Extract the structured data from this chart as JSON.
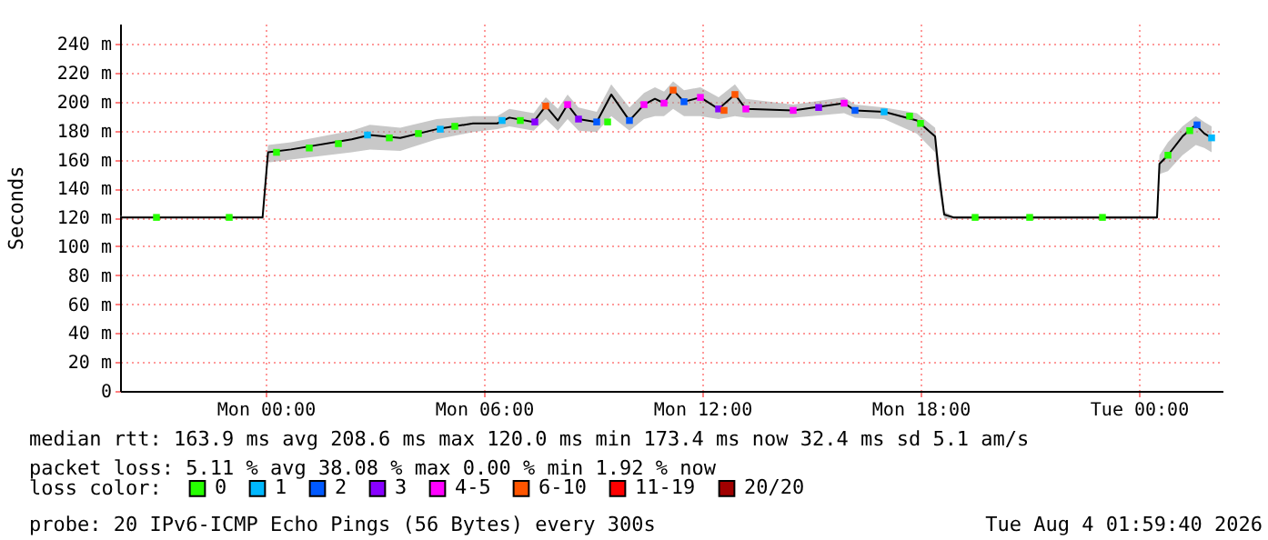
{
  "chart_data": {
    "type": "line",
    "ylabel": "Seconds",
    "legend_title": "loss color:",
    "legend": "bottom",
    "grid": true,
    "xlim": [
      "2026-08-02T20:00",
      "2026-08-04T02:18"
    ],
    "xticks": [
      {
        "value": "2026-08-03T00:00",
        "label": "Mon 00:00"
      },
      {
        "value": "2026-08-03T06:00",
        "label": "Mon 06:00"
      },
      {
        "value": "2026-08-03T12:00",
        "label": "Mon 12:00"
      },
      {
        "value": "2026-08-03T18:00",
        "label": "Mon 18:00"
      },
      {
        "value": "2026-08-04T00:00",
        "label": "Tue 00:00"
      }
    ],
    "ylim": [
      0,
      254
    ],
    "yticks": [
      0,
      {
        "value": 20,
        "label": "20 m"
      },
      {
        "value": 40,
        "label": "40 m"
      },
      {
        "value": 60,
        "label": "60 m"
      },
      {
        "value": 80,
        "label": "80 m"
      },
      {
        "value": 100,
        "label": "100 m"
      },
      {
        "value": 120,
        "label": "120 m"
      },
      {
        "value": 140,
        "label": "140 m"
      },
      {
        "value": 160,
        "label": "160 m"
      },
      {
        "value": 180,
        "label": "180 m"
      },
      {
        "value": 200,
        "label": "200 m"
      },
      {
        "value": 220,
        "label": "220 m"
      },
      {
        "value": 240,
        "label": "240 m"
      }
    ],
    "series": [
      {
        "color": "#000000",
        "marker": "none",
        "x": [
          "2026-08-02T20:00",
          "2026-08-02T23:55",
          "2026-08-03T00:04",
          "2026-08-03T00:42",
          "2026-08-03T02:22",
          "2026-08-03T02:52",
          "2026-08-03T03:42",
          "2026-08-03T04:42",
          "2026-08-03T05:42",
          "2026-08-03T06:22",
          "2026-08-03T06:42",
          "2026-08-03T07:22",
          "2026-08-03T07:42",
          "2026-08-03T08:02",
          "2026-08-03T08:18",
          "2026-08-03T08:36",
          "2026-08-03T09:06",
          "2026-08-03T09:30",
          "2026-08-03T10:00",
          "2026-08-03T10:24",
          "2026-08-03T10:42",
          "2026-08-03T10:57",
          "2026-08-03T11:12",
          "2026-08-03T11:30",
          "2026-08-03T11:57",
          "2026-08-03T12:27",
          "2026-08-03T12:54",
          "2026-08-03T13:12",
          "2026-08-03T14:30",
          "2026-08-03T15:54",
          "2026-08-03T16:12",
          "2026-08-03T17:00",
          "2026-08-03T17:54",
          "2026-08-03T18:24",
          "2026-08-03T18:30",
          "2026-08-03T18:39",
          "2026-08-03T18:54",
          "2026-08-04T00:30",
          "2026-08-04T00:34",
          "2026-08-04T00:48",
          "2026-08-04T01:12",
          "2026-08-04T01:34",
          "2026-08-04T01:48",
          "2026-08-04T02:00"
        ],
        "values": [
          120,
          120,
          165,
          167,
          174,
          177,
          175,
          181,
          185,
          185,
          189,
          186,
          197,
          187,
          198,
          188,
          186,
          205,
          187,
          198,
          202,
          199,
          208,
          200,
          203,
          195,
          205,
          195,
          194,
          199,
          194,
          193,
          187,
          176,
          151,
          122,
          120,
          120,
          157,
          163,
          176,
          184,
          178,
          175
        ],
        "lower": [
          120,
          120,
          158,
          160,
          165,
          167,
          166,
          174,
          179,
          181,
          183,
          180,
          188,
          180,
          188,
          180,
          179,
          190,
          180,
          188,
          190,
          190,
          195,
          190,
          190,
          188,
          190,
          189,
          189,
          192,
          189,
          188,
          178,
          165,
          140,
          119,
          119,
          119,
          150,
          152,
          163,
          170,
          168,
          165
        ],
        "upper": [
          121,
          121,
          170,
          172,
          180,
          184,
          182,
          188,
          190,
          190,
          195,
          192,
          203,
          195,
          205,
          196,
          193,
          212,
          196,
          206,
          210,
          207,
          214,
          208,
          210,
          203,
          212,
          202,
          198,
          203,
          198,
          196,
          192,
          182,
          160,
          124,
          121,
          121,
          163,
          172,
          183,
          190,
          186,
          183
        ]
      },
      {
        "type": "scatter",
        "name": "0",
        "color": "#26ff00",
        "marker": "square",
        "x": [
          "2026-08-02T21:00",
          "2026-08-02T23:00",
          "2026-08-03T00:18",
          "2026-08-03T01:12",
          "2026-08-03T02:00",
          "2026-08-03T03:24",
          "2026-08-03T04:12",
          "2026-08-03T05:12",
          "2026-08-03T07:00",
          "2026-08-03T09:24",
          "2026-08-03T17:42",
          "2026-08-03T18:00",
          "2026-08-03T19:30",
          "2026-08-03T21:00",
          "2026-08-03T23:00",
          "2026-08-04T00:48",
          "2026-08-04T01:24"
        ],
        "values": [
          120,
          120,
          165,
          168,
          171,
          175,
          178,
          183,
          187,
          186,
          190,
          185,
          120,
          120,
          120,
          163,
          180
        ]
      },
      {
        "type": "scatter",
        "name": "1",
        "color": "#00b8ff",
        "marker": "square",
        "x": [
          "2026-08-03T02:48",
          "2026-08-03T04:48",
          "2026-08-03T06:30",
          "2026-08-03T17:00",
          "2026-08-04T02:00"
        ],
        "values": [
          177,
          181,
          187,
          193,
          175
        ]
      },
      {
        "type": "scatter",
        "name": "2",
        "color": "#0059ff",
        "marker": "square",
        "x": [
          "2026-08-03T09:06",
          "2026-08-03T10:00",
          "2026-08-03T11:30",
          "2026-08-03T16:12",
          "2026-08-04T01:36"
        ],
        "values": [
          186,
          187,
          200,
          194,
          184
        ]
      },
      {
        "type": "scatter",
        "name": "3",
        "color": "#8800ff",
        "marker": "square",
        "x": [
          "2026-08-03T07:24",
          "2026-08-03T08:36",
          "2026-08-03T12:27",
          "2026-08-03T15:12"
        ],
        "values": [
          186,
          188,
          195,
          196
        ]
      },
      {
        "type": "scatter",
        "name": "4-5",
        "color": "#ff00ff",
        "marker": "square",
        "x": [
          "2026-08-03T08:18",
          "2026-08-03T10:24",
          "2026-08-03T10:57",
          "2026-08-03T11:57",
          "2026-08-03T13:12",
          "2026-08-03T14:30",
          "2026-08-03T15:54"
        ],
        "values": [
          198,
          198,
          199,
          203,
          195,
          194,
          199
        ]
      },
      {
        "type": "scatter",
        "name": "6-10",
        "color": "#ff5500",
        "marker": "square",
        "x": [
          "2026-08-03T07:42",
          "2026-08-03T11:12",
          "2026-08-03T12:36",
          "2026-08-03T12:54"
        ],
        "values": [
          197,
          208,
          194,
          205
        ]
      },
      {
        "type": "scatter",
        "name": "11-19",
        "color": "#ff0000",
        "marker": "square"
      },
      {
        "type": "scatter",
        "name": "20/20",
        "color": "#a10000",
        "marker": "square"
      }
    ],
    "annotations": [
      "median rtt:  163.9 ms avg  208.6 ms max  120.0 ms min  173.4 ms now  32.4 ms sd  5.1   am/s",
      "packet loss: 5.11 % avg  38.08 % max  0.00 % min  1.92 % now",
      "probe:       20 IPv6-ICMP Echo Pings (56 Bytes) every 300s",
      "Tue Aug  4 01:59:40 2026"
    ]
  }
}
